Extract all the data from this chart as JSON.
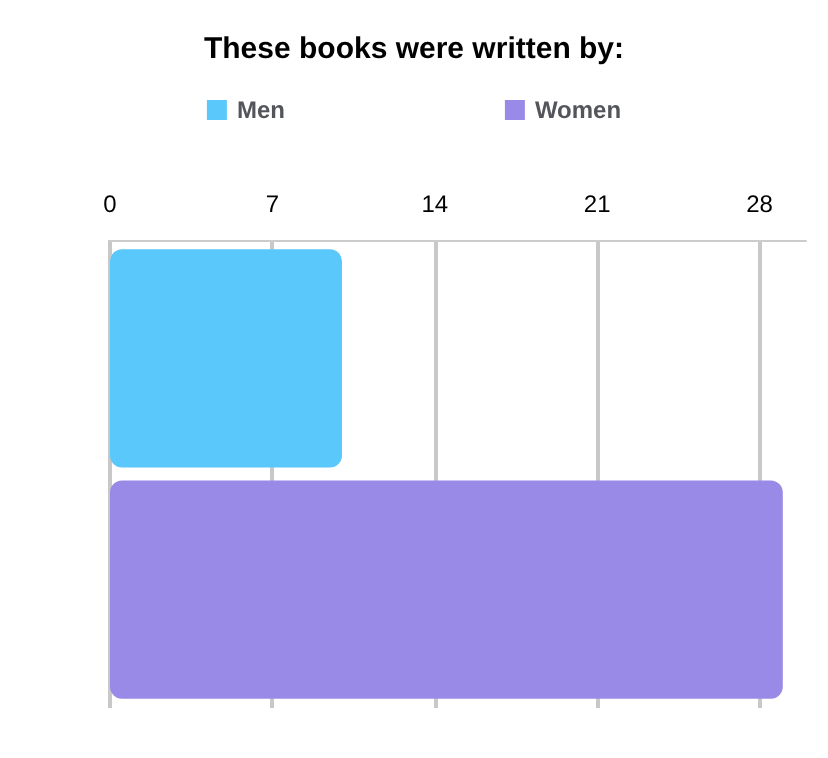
{
  "chart_data": {
    "type": "bar",
    "orientation": "horizontal",
    "title": "These books were written by:",
    "categories": [
      null
    ],
    "series": [
      {
        "name": "Men",
        "color": "#5ac8fa",
        "values": [
          10
        ]
      },
      {
        "name": "Women",
        "color": "#9a8ae8",
        "values": [
          29
        ]
      }
    ],
    "xlim": [
      0,
      30
    ],
    "xticks": [
      0,
      7,
      14,
      21,
      28
    ],
    "grid": "x",
    "legend": "top"
  }
}
